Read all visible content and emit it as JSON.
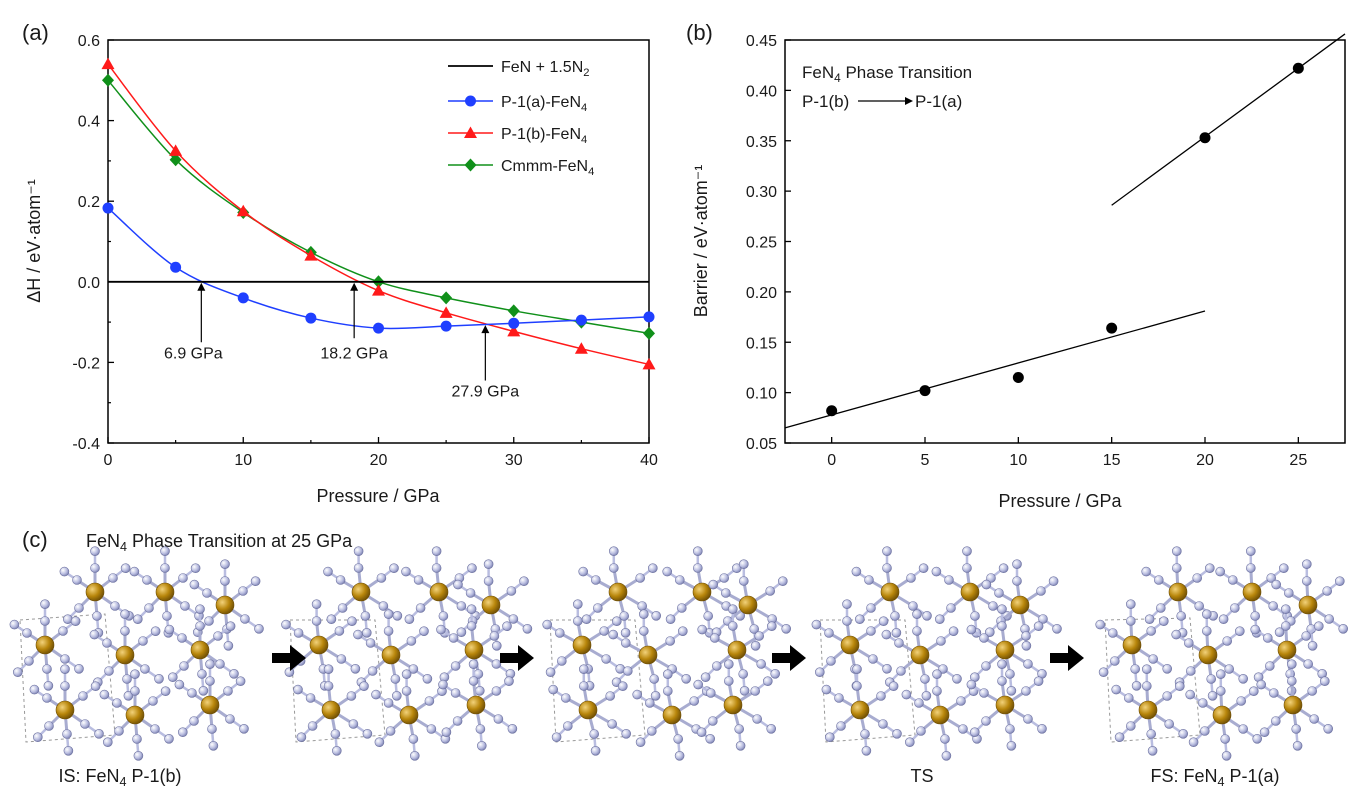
{
  "panel_labels": {
    "a": "(a)",
    "b": "(b)",
    "c": "(c)"
  },
  "chart_data": [
    {
      "panel": "(a)",
      "type": "line",
      "title": "",
      "xlabel": "Pressure / GPa",
      "ylabel": "ΔH / eV·atom⁻¹",
      "xlim": [
        0,
        40
      ],
      "ylim": [
        -0.4,
        0.6
      ],
      "xticks": [
        0,
        10,
        20,
        30,
        40
      ],
      "yticks": [
        -0.4,
        -0.2,
        0.0,
        0.2,
        0.4,
        0.6
      ],
      "xtick_labels": [
        "0",
        "10",
        "20",
        "30",
        "40"
      ],
      "ytick_labels": [
        "-0.4",
        "-0.2",
        "0.0",
        "0.2",
        "0.4",
        "0.6"
      ],
      "grid": false,
      "legend_position": "top-right",
      "series": [
        {
          "name": "FeN + 1.5N2",
          "name_main": "FeN + 1.5N",
          "name_sub": "2",
          "color": "#000000",
          "marker": "none",
          "x": [
            0,
            40
          ],
          "y": [
            0,
            0
          ]
        },
        {
          "name": "P-1(a)-FeN4",
          "name_main": "P-1(a)-FeN",
          "name_sub": "4",
          "color": "#1f3fff",
          "marker": "circle",
          "x": [
            0,
            5,
            10,
            15,
            20,
            25,
            30,
            35,
            40
          ],
          "y": [
            0.183,
            0.036,
            -0.04,
            -0.09,
            -0.115,
            -0.11,
            -0.103,
            -0.095,
            -0.087
          ]
        },
        {
          "name": "P-1(b)-FeN4",
          "name_main": "P-1(b)-FeN",
          "name_sub": "4",
          "color": "#ff1a1a",
          "marker": "triangle",
          "x": [
            0,
            5,
            10,
            15,
            20,
            25,
            30,
            35,
            40
          ],
          "y": [
            0.54,
            0.325,
            0.175,
            0.065,
            -0.022,
            -0.077,
            -0.123,
            -0.166,
            -0.205
          ]
        },
        {
          "name": "Cmmm-FeN4",
          "name_main": "Cmmm-FeN",
          "name_sub": "4",
          "color": "#10901a",
          "marker": "diamond",
          "x": [
            0,
            5,
            10,
            15,
            20,
            25,
            30,
            35,
            40
          ],
          "y": [
            0.5,
            0.303,
            0.172,
            0.073,
            0.0,
            -0.04,
            -0.072,
            -0.1,
            -0.128
          ]
        }
      ],
      "annotations": [
        {
          "text": "6.9 GPa",
          "x": 6.9
        },
        {
          "text": "18.2 GPa",
          "x": 18.2
        },
        {
          "text": "27.9 GPa",
          "x": 27.9
        }
      ]
    },
    {
      "panel": "(b)",
      "type": "scatter",
      "title": "",
      "xlabel": "Pressure / GPa",
      "ylabel": "Barrier / eV·atom⁻¹",
      "xlim": [
        -2.5,
        27.5
      ],
      "ylim": [
        0.05,
        0.45
      ],
      "xticks": [
        0,
        5,
        10,
        15,
        20,
        25
      ],
      "yticks": [
        0.05,
        0.1,
        0.15,
        0.2,
        0.25,
        0.3,
        0.35,
        0.4,
        0.45
      ],
      "xtick_labels": [
        "0",
        "5",
        "10",
        "15",
        "20",
        "25"
      ],
      "ytick_labels": [
        "0.05",
        "0.10",
        "0.15",
        "0.20",
        "0.25",
        "0.30",
        "0.35",
        "0.40",
        "0.45"
      ],
      "grid": false,
      "points": {
        "x": [
          0,
          5,
          10,
          15,
          20,
          25
        ],
        "y": [
          0.082,
          0.102,
          0.115,
          0.164,
          0.353,
          0.422
        ]
      },
      "fit_lines": [
        {
          "x": [
            -2.5,
            20
          ],
          "y": [
            0.065,
            0.181
          ]
        },
        {
          "x": [
            15,
            27.5
          ],
          "y": [
            0.286,
            0.456
          ]
        }
      ],
      "inset_title_main": "FeN",
      "inset_title_sub": "4",
      "inset_title_rest": " Phase Transition",
      "inset_from": "P-1(b)",
      "inset_to": "P-1(a)"
    }
  ],
  "panel_c": {
    "title_main": "FeN",
    "title_sub": "4",
    "title_rest": " Phase Transition at 25 GPa",
    "captions": [
      {
        "main": "IS: FeN",
        "sub": "4",
        "rest": " P-1(b)"
      },
      {
        "main": "",
        "sub": "",
        "rest": ""
      },
      {
        "main": "",
        "sub": "",
        "rest": ""
      },
      {
        "main": "TS",
        "sub": "",
        "rest": ""
      },
      {
        "main": "FS: FeN",
        "sub": "4",
        "rest": " P-1(a)"
      }
    ],
    "colors": {
      "fe_atom": "#b8860b",
      "n_atom": "#9aa0c8",
      "bond": "#a8acd0"
    }
  }
}
